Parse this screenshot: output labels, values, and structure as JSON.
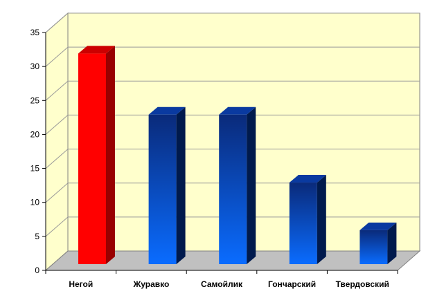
{
  "chart_data": {
    "type": "bar",
    "categories": [
      "Негой",
      "Журавко",
      "Самойлик",
      "Гончарский",
      "Твердовский"
    ],
    "values": [
      31,
      22,
      22,
      12,
      5
    ],
    "highlight_index": 0,
    "title": "",
    "xlabel": "",
    "ylabel": "",
    "ylim": [
      0,
      35
    ],
    "yticks": [
      0,
      5,
      10,
      15,
      20,
      25,
      30,
      35
    ],
    "grid": true,
    "legend": "none",
    "colors": {
      "highlight_front": "#ff0000",
      "highlight_side": "#990000",
      "highlight_top": "#cc0000",
      "bar_front_top": "#0a2a7a",
      "bar_front_bottom": "#0a6cff",
      "bar_side": "#001a4d",
      "bar_top": "#0a3aa0",
      "wall": "#ffffcc",
      "floor": "#c0c0c0",
      "gridline": "#999999"
    }
  }
}
